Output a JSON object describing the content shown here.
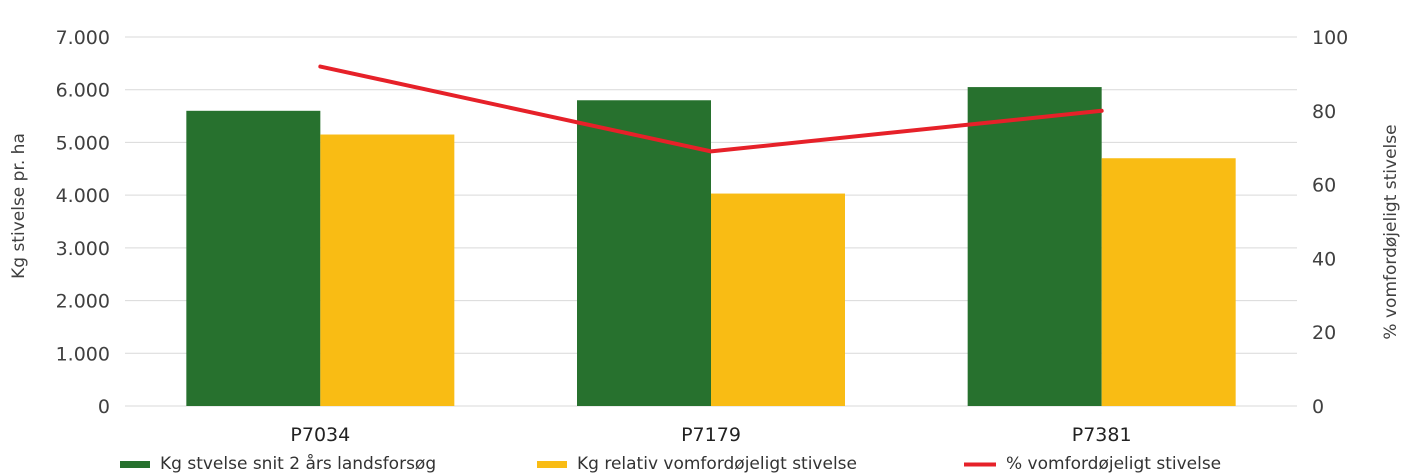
{
  "chart_data": {
    "type": "bar",
    "categories": [
      "P7034",
      "P7179",
      "P7381"
    ],
    "series": [
      {
        "name": "Kg stvelse snit 2 års landsforsøg",
        "kind": "bar",
        "axis": "left",
        "color": "#27712e",
        "values": [
          5600,
          5800,
          6050
        ]
      },
      {
        "name": "Kg relativ vomfordøjeligt stivelse",
        "kind": "bar",
        "axis": "left",
        "color": "#f9bc14",
        "values": [
          5150,
          4030,
          4700
        ]
      },
      {
        "name": "% vomfordøjeligt stivelse",
        "kind": "line",
        "axis": "right",
        "color": "#e62129",
        "values": [
          92,
          69,
          80
        ]
      }
    ],
    "ylabel": "Kg stivelse pr. ha",
    "y2label": "% vomfordøjeligt stivelse",
    "ylim": [
      0,
      7000
    ],
    "y2lim": [
      0,
      100
    ],
    "yticks": [
      "0",
      "1.000",
      "2.000",
      "3.000",
      "4.000",
      "5.000",
      "6.000",
      "7.000"
    ],
    "y2ticks": [
      "0",
      "20",
      "40",
      "60",
      "80",
      "100"
    ],
    "grid": true,
    "legend_position": "bottom"
  }
}
